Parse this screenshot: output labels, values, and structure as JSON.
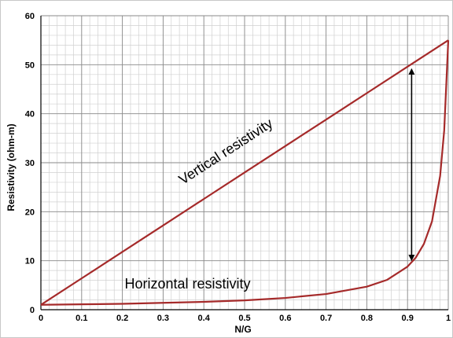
{
  "chart_data": {
    "type": "line",
    "title": "",
    "xlabel": "N/G",
    "ylabel": "Resistivity (ohm-m)",
    "xlim": [
      0,
      1
    ],
    "ylim": [
      0,
      60
    ],
    "x_ticks": [
      "0",
      "0.1",
      "0.2",
      "0.3",
      "0.4",
      "0.5",
      "0.6",
      "0.7",
      "0.8",
      "0.9",
      "1"
    ],
    "y_ticks": [
      "0",
      "10",
      "20",
      "30",
      "40",
      "50",
      "60"
    ],
    "grid": true,
    "minor_grid": true,
    "series_color": "#a52a2a",
    "series": [
      {
        "x": [
          0,
          0.1,
          0.2,
          0.3,
          0.4,
          0.5,
          0.6,
          0.7,
          0.8,
          0.9,
          1.0
        ],
        "values": [
          1,
          6.4,
          11.8,
          17.2,
          22.6,
          28.0,
          33.4,
          38.8,
          44.2,
          49.6,
          55
        ]
      },
      {
        "x": [
          0,
          0.1,
          0.2,
          0.3,
          0.4,
          0.5,
          0.6,
          0.7,
          0.8,
          0.85,
          0.9,
          0.92,
          0.94,
          0.96,
          0.98,
          0.99,
          1.0
        ],
        "values": [
          1.0,
          1.1,
          1.2,
          1.4,
          1.6,
          1.9,
          2.4,
          3.2,
          4.7,
          6.1,
          8.8,
          10.6,
          13.4,
          18.0,
          27.3,
          36.6,
          55
        ]
      }
    ],
    "annotations": [
      {
        "text": "Vertical resistivity",
        "x": 0.46,
        "y": 31.5,
        "rotate_along_series": 0
      },
      {
        "text": "Horizontal resistivity",
        "x": 0.36,
        "y": 4.3
      }
    ],
    "double_arrow": {
      "x": 0.91,
      "y_from": 9.6,
      "y_to": 49.6
    }
  }
}
